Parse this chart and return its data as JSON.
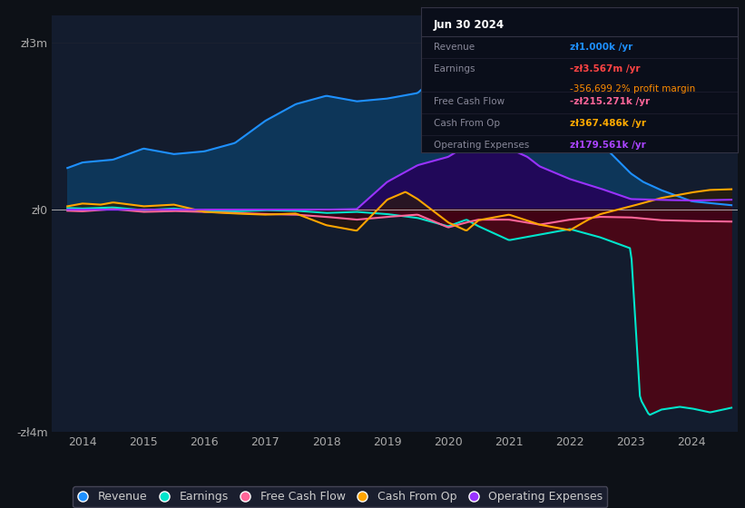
{
  "bg_color": "#0d1117",
  "plot_bg_color": "#131c2e",
  "grid_color": "#1e2332",
  "title_date": "Jun 30 2024",
  "tooltip": {
    "Revenue": {
      "value": "zł1.000k /yr",
      "color": "#1e90ff"
    },
    "Earnings": {
      "value": "-zł3.567m /yr",
      "color": "#ff4444"
    },
    "profit_margin": {
      "value": "-356,699.2%",
      "color": "#ff8c00"
    },
    "profit_margin_label": "profit margin",
    "Free Cash Flow": {
      "value": "-zł215.271k /yr",
      "color": "#ff6699"
    },
    "Cash From Op": {
      "value": "zł367.486k /yr",
      "color": "#ffaa00"
    },
    "Operating Expenses": {
      "value": "zł179.561k /yr",
      "color": "#aa44ff"
    }
  },
  "ylim": [
    -4000000,
    3500000
  ],
  "yticks": [
    -4000000,
    0,
    3000000
  ],
  "ytick_labels": [
    "-zł4m",
    "zł0",
    "zł3m"
  ],
  "xlim_start": 2013.5,
  "xlim_end": 2024.75,
  "xticks": [
    2014,
    2015,
    2016,
    2017,
    2018,
    2019,
    2020,
    2021,
    2022,
    2023,
    2024
  ],
  "series": {
    "Revenue": {
      "color": "#1e90ff",
      "fill_color": "#0d3a5e",
      "lw": 1.5
    },
    "Earnings": {
      "color": "#00e5cc",
      "fill_color": "#4a0010",
      "lw": 1.5
    },
    "Free Cash Flow": {
      "color": "#ff6699",
      "fill_color": "#3a0020",
      "lw": 1.5
    },
    "Cash From Op": {
      "color": "#ffa500",
      "fill_color": "#3a1a00",
      "lw": 1.5
    },
    "Operating Expenses": {
      "color": "#9933ff",
      "fill_color": "#2a0055",
      "lw": 1.5
    }
  },
  "legend": [
    {
      "label": "Revenue",
      "color": "#1e90ff"
    },
    {
      "label": "Earnings",
      "color": "#00e5cc"
    },
    {
      "label": "Free Cash Flow",
      "color": "#ff6699"
    },
    {
      "label": "Cash From Op",
      "color": "#ffa500"
    },
    {
      "label": "Operating Expenses",
      "color": "#9933ff"
    }
  ]
}
